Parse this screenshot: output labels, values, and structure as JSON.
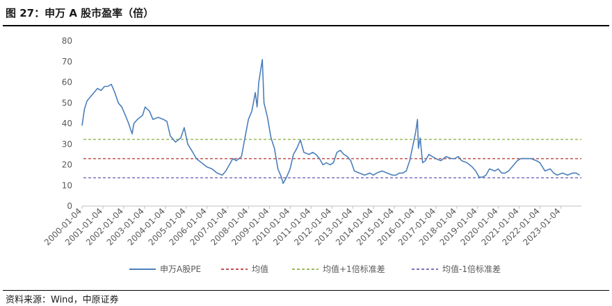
{
  "figure": {
    "title": "图 27：申万 A 股市盈率（倍）",
    "source": "资料来源：Wind，中原证券"
  },
  "chart_data": {
    "type": "line",
    "title": "",
    "xlabel": "",
    "ylabel": "",
    "ylim": [
      0,
      80
    ],
    "yticks": [
      0,
      10,
      20,
      30,
      40,
      50,
      60,
      70,
      80
    ],
    "xlim": [
      "2000-01-04",
      "2023-12-31"
    ],
    "xticks": [
      "2000-01-04",
      "2001-01-04",
      "2002-01-04",
      "2003-01-04",
      "2004-01-04",
      "2005-01-04",
      "2006-01-04",
      "2007-01-04",
      "2008-01-04",
      "2009-01-04",
      "2010-01-04",
      "2011-01-04",
      "2012-01-04",
      "2013-01-04",
      "2014-01-04",
      "2015-01-04",
      "2016-01-04",
      "2017-01-04",
      "2018-01-04",
      "2019-01-04",
      "2020-01-04",
      "2021-01-04",
      "2022-01-04",
      "2023-01-04"
    ],
    "grid": false,
    "legend_position": "bottom",
    "series": [
      {
        "name": "申万A股PE",
        "color": "#4a7ebb",
        "style": "solid",
        "points": [
          [
            "2000-01-04",
            39
          ],
          [
            "2000-02-15",
            47
          ],
          [
            "2000-04-01",
            51
          ],
          [
            "2000-06-01",
            53
          ],
          [
            "2000-08-01",
            55
          ],
          [
            "2000-10-01",
            57
          ],
          [
            "2000-12-01",
            56
          ],
          [
            "2001-02-01",
            58
          ],
          [
            "2001-04-01",
            58
          ],
          [
            "2001-06-01",
            59
          ],
          [
            "2001-08-01",
            55
          ],
          [
            "2001-10-01",
            50
          ],
          [
            "2001-12-01",
            48
          ],
          [
            "2002-02-01",
            44
          ],
          [
            "2002-04-01",
            40
          ],
          [
            "2002-06-01",
            35
          ],
          [
            "2002-07-01",
            40
          ],
          [
            "2002-09-01",
            42
          ],
          [
            "2002-12-01",
            44
          ],
          [
            "2003-01-15",
            48
          ],
          [
            "2003-04-01",
            46
          ],
          [
            "2003-06-01",
            42
          ],
          [
            "2003-09-01",
            43
          ],
          [
            "2003-12-01",
            42
          ],
          [
            "2004-02-01",
            41
          ],
          [
            "2004-04-01",
            34
          ],
          [
            "2004-07-01",
            31
          ],
          [
            "2004-10-01",
            33
          ],
          [
            "2004-12-01",
            38
          ],
          [
            "2005-02-01",
            30
          ],
          [
            "2005-05-01",
            26
          ],
          [
            "2005-07-01",
            23
          ],
          [
            "2005-10-01",
            21
          ],
          [
            "2006-01-01",
            19
          ],
          [
            "2006-04-01",
            18
          ],
          [
            "2006-07-01",
            16
          ],
          [
            "2006-10-01",
            15
          ],
          [
            "2006-12-01",
            17
          ],
          [
            "2007-02-01",
            20
          ],
          [
            "2007-04-01",
            23
          ],
          [
            "2007-06-01",
            22
          ],
          [
            "2007-09-01",
            24
          ],
          [
            "2007-11-01",
            33
          ],
          [
            "2008-01-01",
            42
          ],
          [
            "2008-03-01",
            46
          ],
          [
            "2008-05-01",
            55
          ],
          [
            "2008-06-01",
            48
          ],
          [
            "2008-07-01",
            60
          ],
          [
            "2008-09-01",
            71
          ],
          [
            "2008-10-01",
            50
          ],
          [
            "2008-12-01",
            43
          ],
          [
            "2009-02-01",
            33
          ],
          [
            "2009-04-01",
            28
          ],
          [
            "2009-06-01",
            18
          ],
          [
            "2009-08-01",
            14
          ],
          [
            "2009-09-01",
            11
          ],
          [
            "2009-11-01",
            14
          ],
          [
            "2010-01-01",
            18
          ],
          [
            "2010-03-01",
            25
          ],
          [
            "2010-05-01",
            28
          ],
          [
            "2010-07-01",
            32
          ],
          [
            "2010-09-01",
            26
          ],
          [
            "2010-12-01",
            25
          ],
          [
            "2011-02-01",
            26
          ],
          [
            "2011-04-01",
            25
          ],
          [
            "2011-06-01",
            23
          ],
          [
            "2011-08-01",
            20
          ],
          [
            "2011-10-01",
            21
          ],
          [
            "2011-12-01",
            20
          ],
          [
            "2012-02-01",
            21
          ],
          [
            "2012-04-01",
            26
          ],
          [
            "2012-06-01",
            27
          ],
          [
            "2012-08-01",
            25
          ],
          [
            "2012-10-01",
            24
          ],
          [
            "2012-12-01",
            22
          ],
          [
            "2013-02-01",
            17
          ],
          [
            "2013-05-01",
            16
          ],
          [
            "2013-08-01",
            15
          ],
          [
            "2013-11-01",
            16
          ],
          [
            "2014-01-01",
            15
          ],
          [
            "2014-03-01",
            16
          ],
          [
            "2014-06-01",
            17
          ],
          [
            "2014-09-01",
            16
          ],
          [
            "2014-12-01",
            15
          ],
          [
            "2015-02-01",
            15
          ],
          [
            "2015-04-01",
            16
          ],
          [
            "2015-06-01",
            16
          ],
          [
            "2015-08-01",
            17
          ],
          [
            "2015-10-01",
            22
          ],
          [
            "2015-12-01",
            30
          ],
          [
            "2016-01-15",
            36
          ],
          [
            "2016-02-15",
            42
          ],
          [
            "2016-03-01",
            28
          ],
          [
            "2016-04-01",
            33
          ],
          [
            "2016-05-15",
            21
          ],
          [
            "2016-07-01",
            22
          ],
          [
            "2016-09-01",
            25
          ],
          [
            "2017-01-01",
            23
          ],
          [
            "2017-04-01",
            22
          ],
          [
            "2017-07-01",
            24
          ],
          [
            "2017-10-01",
            23
          ],
          [
            "2017-12-01",
            23
          ],
          [
            "2018-02-01",
            24
          ],
          [
            "2018-04-01",
            22
          ],
          [
            "2018-07-01",
            21
          ],
          [
            "2018-10-01",
            19
          ],
          [
            "2018-12-01",
            17
          ],
          [
            "2019-02-01",
            14
          ],
          [
            "2019-04-01",
            14
          ],
          [
            "2019-06-01",
            15
          ],
          [
            "2019-08-01",
            18
          ],
          [
            "2019-11-01",
            17
          ],
          [
            "2020-01-01",
            18
          ],
          [
            "2020-03-01",
            16
          ],
          [
            "2020-05-01",
            16
          ],
          [
            "2020-07-01",
            17
          ],
          [
            "2020-10-01",
            20
          ],
          [
            "2020-12-01",
            22
          ],
          [
            "2021-02-01",
            23
          ],
          [
            "2021-05-01",
            23
          ],
          [
            "2021-08-01",
            23
          ],
          [
            "2021-11-01",
            22
          ],
          [
            "2022-01-01",
            21
          ],
          [
            "2022-04-01",
            17
          ],
          [
            "2022-07-01",
            18
          ],
          [
            "2022-09-01",
            16
          ],
          [
            "2022-11-01",
            15
          ],
          [
            "2023-02-01",
            16
          ],
          [
            "2023-05-01",
            15
          ],
          [
            "2023-08-01",
            16
          ],
          [
            "2023-10-01",
            16
          ],
          [
            "2023-12-01",
            15
          ]
        ]
      },
      {
        "name": "均值",
        "color": "#c0504d",
        "style": "dashed",
        "value": 23
      },
      {
        "name": "均值+1倍标准差",
        "color": "#9bbb59",
        "style": "dashed",
        "value": 32.3
      },
      {
        "name": "均值-1倍标准差",
        "color": "#7e6fbc",
        "style": "dashed",
        "value": 13.7
      }
    ]
  }
}
